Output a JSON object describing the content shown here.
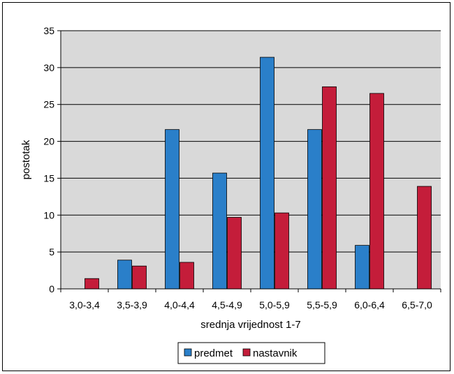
{
  "chart_data": {
    "type": "bar",
    "xlabel": "srednja vrijednost 1-7",
    "ylabel": "postotak",
    "ylim": [
      0,
      35
    ],
    "yticks": [
      0,
      5,
      10,
      15,
      20,
      25,
      30,
      35
    ],
    "categories": [
      "3,0-3,4",
      "3,5-3,9",
      "4,0-4,4",
      "4,5-4,9",
      "5,0-5,9",
      "5,5-5,9",
      "6,0-6,4",
      "6,5-7,0"
    ],
    "series": [
      {
        "name": "predmet",
        "color": "#2a7fc9",
        "values": [
          0,
          3.9,
          21.6,
          15.7,
          31.4,
          21.6,
          5.9,
          0
        ]
      },
      {
        "name": "nastavnik",
        "color": "#c41d3a",
        "values": [
          1.4,
          3.1,
          3.6,
          9.7,
          10.3,
          27.4,
          26.5,
          13.9
        ]
      }
    ],
    "grid": true,
    "legend_position": "bottom",
    "plot_background": "#d9d9d9"
  }
}
